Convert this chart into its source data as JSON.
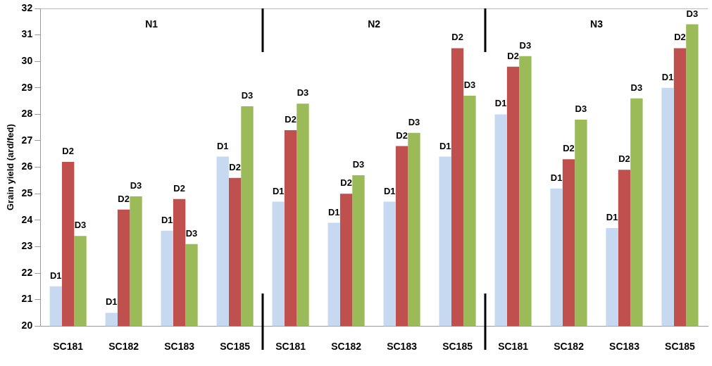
{
  "chart_data": {
    "type": "bar",
    "ylabel": "Grain yield (ard/fed)",
    "categories": [
      "SC181",
      "SC182",
      "SC183",
      "SC185",
      "SC181",
      "SC182",
      "SC183",
      "SC185",
      "SC181",
      "SC182",
      "SC183",
      "SC185"
    ],
    "series": [
      {
        "name": "D1",
        "color": "#c6d9f1",
        "values": [
          21.5,
          20.5,
          23.6,
          26.4,
          24.7,
          23.9,
          24.7,
          26.4,
          28.0,
          25.2,
          23.7,
          29.0
        ]
      },
      {
        "name": "D2",
        "color": "#c0504d",
        "values": [
          26.2,
          24.4,
          24.8,
          25.6,
          27.4,
          25.0,
          26.8,
          30.5,
          29.8,
          26.3,
          25.9,
          30.5
        ]
      },
      {
        "name": "D3",
        "color": "#9bbb59",
        "values": [
          23.4,
          24.9,
          23.1,
          28.3,
          28.4,
          25.7,
          27.3,
          28.7,
          30.2,
          27.8,
          28.6,
          31.4
        ]
      }
    ],
    "annotations": [
      "N1",
      "N2",
      "N3"
    ],
    "ylim": [
      20,
      32
    ],
    "yticks": [
      20,
      21,
      22,
      23,
      24,
      25,
      26,
      27,
      28,
      29,
      30,
      31,
      32
    ],
    "grid": false,
    "legend": false
  }
}
